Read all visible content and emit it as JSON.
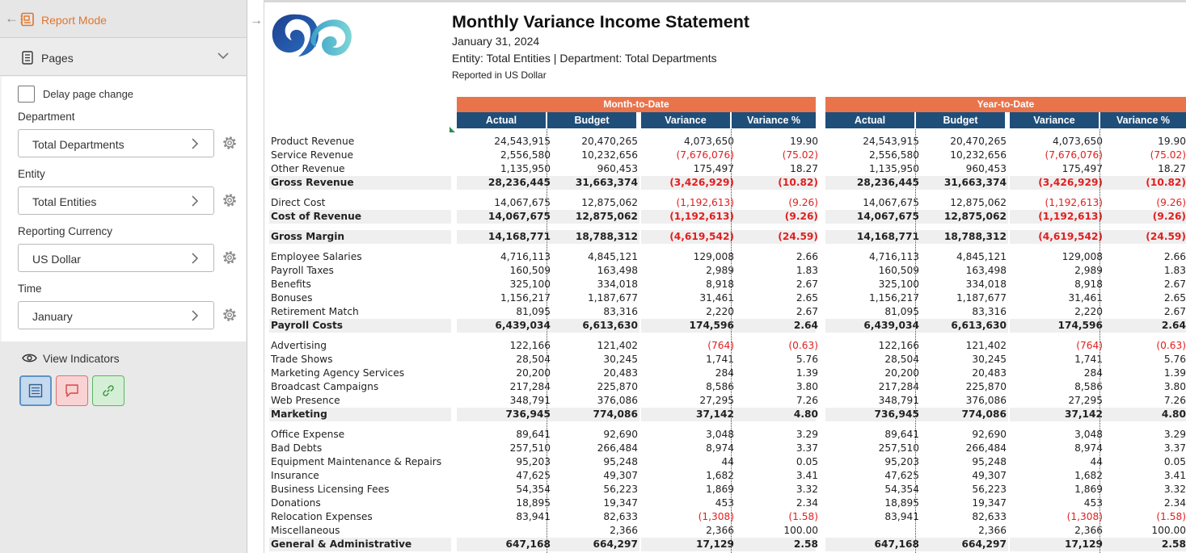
{
  "left_panel": {
    "report_mode_label": "Report Mode",
    "pages_label": "Pages",
    "delay_label": "Delay page change",
    "parameters": [
      {
        "label": "Department",
        "value": "Total Departments"
      },
      {
        "label": "Entity",
        "value": "Total Entities"
      },
      {
        "label": "Reporting Currency",
        "value": "US Dollar"
      },
      {
        "label": "Time",
        "value": "January"
      }
    ],
    "view_indicators_label": "View Indicators",
    "icons": [
      "back-arrow-icon",
      "report-icon",
      "pages-icon",
      "chevron-down-icon",
      "chevron-right-icon",
      "gear-icon",
      "eye-icon",
      "notes-icon",
      "comment-icon",
      "link-icon"
    ]
  },
  "report": {
    "title": "Monthly Variance Income Statement",
    "date": "January 31, 2024",
    "entity_line": "Entity: Total Entities | Department: Total Departments",
    "currency_line": "Reported in US Dollar",
    "groups": [
      "Month-to-Date",
      "Year-to-Date"
    ],
    "columns": [
      "Actual",
      "Budget",
      "Variance",
      "Variance %",
      "Actual",
      "Budget",
      "Variance",
      "Variance %"
    ],
    "colors": {
      "group_header": "#e9744c",
      "column_header": "#1f4e79",
      "negative": "#e02020",
      "total_row": "#efefef"
    },
    "rows": [
      {
        "label": "Product Revenue",
        "values": [
          "24,543,915",
          "20,470,265",
          "4,073,650",
          "19.90",
          "24,543,915",
          "20,470,265",
          "4,073,650",
          "19.90"
        ]
      },
      {
        "label": "Service Revenue",
        "values": [
          "2,556,580",
          "10,232,656",
          "(7,676,076)",
          "(75.02)",
          "2,556,580",
          "10,232,656",
          "(7,676,076)",
          "(75.02)"
        ]
      },
      {
        "label": "Other Revenue",
        "values": [
          "1,135,950",
          "960,453",
          "175,497",
          "18.27",
          "1,135,950",
          "960,453",
          "175,497",
          "18.27"
        ]
      },
      {
        "label": "Gross Revenue",
        "total": true,
        "values": [
          "28,236,445",
          "31,663,374",
          "(3,426,929)",
          "(10.82)",
          "28,236,445",
          "31,663,374",
          "(3,426,929)",
          "(10.82)"
        ]
      },
      {
        "label": "Direct Cost",
        "values": [
          "14,067,675",
          "12,875,062",
          "(1,192,613)",
          "(9.26)",
          "14,067,675",
          "12,875,062",
          "(1,192,613)",
          "(9.26)"
        ]
      },
      {
        "label": "Cost of Revenue",
        "total": true,
        "values": [
          "14,067,675",
          "12,875,062",
          "(1,192,613)",
          "(9.26)",
          "14,067,675",
          "12,875,062",
          "(1,192,613)",
          "(9.26)"
        ]
      },
      {
        "label": "Gross Margin",
        "total": true,
        "values": [
          "14,168,771",
          "18,788,312",
          "(4,619,542)",
          "(24.59)",
          "14,168,771",
          "18,788,312",
          "(4,619,542)",
          "(24.59)"
        ]
      },
      {
        "label": "Employee Salaries",
        "values": [
          "4,716,113",
          "4,845,121",
          "129,008",
          "2.66",
          "4,716,113",
          "4,845,121",
          "129,008",
          "2.66"
        ]
      },
      {
        "label": "Payroll Taxes",
        "values": [
          "160,509",
          "163,498",
          "2,989",
          "1.83",
          "160,509",
          "163,498",
          "2,989",
          "1.83"
        ]
      },
      {
        "label": "Benefits",
        "values": [
          "325,100",
          "334,018",
          "8,918",
          "2.67",
          "325,100",
          "334,018",
          "8,918",
          "2.67"
        ]
      },
      {
        "label": "Bonuses",
        "values": [
          "1,156,217",
          "1,187,677",
          "31,461",
          "2.65",
          "1,156,217",
          "1,187,677",
          "31,461",
          "2.65"
        ]
      },
      {
        "label": "Retirement Match",
        "values": [
          "81,095",
          "83,316",
          "2,220",
          "2.67",
          "81,095",
          "83,316",
          "2,220",
          "2.67"
        ]
      },
      {
        "label": "Payroll Costs",
        "total": true,
        "values": [
          "6,439,034",
          "6,613,630",
          "174,596",
          "2.64",
          "6,439,034",
          "6,613,630",
          "174,596",
          "2.64"
        ]
      },
      {
        "label": "Advertising",
        "values": [
          "122,166",
          "121,402",
          "(764)",
          "(0.63)",
          "122,166",
          "121,402",
          "(764)",
          "(0.63)"
        ]
      },
      {
        "label": "Trade Shows",
        "values": [
          "28,504",
          "30,245",
          "1,741",
          "5.76",
          "28,504",
          "30,245",
          "1,741",
          "5.76"
        ]
      },
      {
        "label": "Marketing Agency Services",
        "values": [
          "20,200",
          "20,483",
          "284",
          "1.39",
          "20,200",
          "20,483",
          "284",
          "1.39"
        ]
      },
      {
        "label": "Broadcast Campaigns",
        "values": [
          "217,284",
          "225,870",
          "8,586",
          "3.80",
          "217,284",
          "225,870",
          "8,586",
          "3.80"
        ]
      },
      {
        "label": "Web Presence",
        "values": [
          "348,791",
          "376,086",
          "27,295",
          "7.26",
          "348,791",
          "376,086",
          "27,295",
          "7.26"
        ]
      },
      {
        "label": "Marketing",
        "total": true,
        "values": [
          "736,945",
          "774,086",
          "37,142",
          "4.80",
          "736,945",
          "774,086",
          "37,142",
          "4.80"
        ]
      },
      {
        "label": "Office Expense",
        "values": [
          "89,641",
          "92,690",
          "3,048",
          "3.29",
          "89,641",
          "92,690",
          "3,048",
          "3.29"
        ]
      },
      {
        "label": "Bad Debts",
        "values": [
          "257,510",
          "266,484",
          "8,974",
          "3.37",
          "257,510",
          "266,484",
          "8,974",
          "3.37"
        ]
      },
      {
        "label": "Equipment Maintenance & Repairs",
        "values": [
          "95,203",
          "95,248",
          "44",
          "0.05",
          "95,203",
          "95,248",
          "44",
          "0.05"
        ]
      },
      {
        "label": "Insurance",
        "values": [
          "47,625",
          "49,307",
          "1,682",
          "3.41",
          "47,625",
          "49,307",
          "1,682",
          "3.41"
        ]
      },
      {
        "label": "Business Licensing Fees",
        "values": [
          "54,354",
          "56,223",
          "1,869",
          "3.32",
          "54,354",
          "56,223",
          "1,869",
          "3.32"
        ]
      },
      {
        "label": "Donations",
        "values": [
          "18,895",
          "19,347",
          "453",
          "2.34",
          "18,895",
          "19,347",
          "453",
          "2.34"
        ]
      },
      {
        "label": "Relocation Expenses",
        "values": [
          "83,941",
          "82,633",
          "(1,308)",
          "(1.58)",
          "83,941",
          "82,633",
          "(1,308)",
          "(1.58)"
        ]
      },
      {
        "label": "Miscellaneous",
        "values": [
          "",
          "2,366",
          "2,366",
          "100.00",
          "",
          "2,366",
          "2,366",
          "100.00"
        ]
      },
      {
        "label": "General & Administrative",
        "total": true,
        "values": [
          "647,168",
          "664,297",
          "17,129",
          "2.58",
          "647,168",
          "664,297",
          "17,129",
          "2.58"
        ]
      }
    ]
  }
}
